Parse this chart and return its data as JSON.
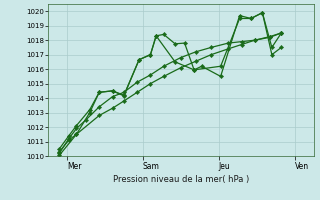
{
  "background_color": "#cce8e8",
  "grid_color": "#aacccc",
  "line_color": "#1a6b1a",
  "xlabel": "Pression niveau de la mer( hPa )",
  "ylim": [
    1010,
    1020.5
  ],
  "yticks": [
    1010,
    1011,
    1012,
    1013,
    1014,
    1015,
    1016,
    1017,
    1018,
    1019,
    1020
  ],
  "xlim": [
    0,
    7.0
  ],
  "day_ticks": [
    0.5,
    2.5,
    4.5,
    6.5
  ],
  "day_labels": [
    "Mer",
    "Sam",
    "Jeu",
    "Ven"
  ],
  "series1_x": [
    0.3,
    0.55,
    0.75,
    1.1,
    1.35,
    1.7,
    2.0,
    2.4,
    2.7,
    2.85,
    3.05,
    3.35,
    3.6,
    3.85,
    4.05,
    4.55,
    5.05,
    5.35,
    5.65,
    5.9,
    6.15
  ],
  "series1_y": [
    1010.3,
    1011.1,
    1011.5,
    1013.0,
    1014.4,
    1014.5,
    1014.15,
    1016.65,
    1017.0,
    1018.3,
    1018.4,
    1017.75,
    1017.8,
    1015.95,
    1016.2,
    1015.5,
    1019.7,
    1019.5,
    1019.9,
    1017.0,
    1017.5
  ],
  "series2_x": [
    0.3,
    0.55,
    0.75,
    1.1,
    1.35,
    1.7,
    2.0,
    2.4,
    2.7,
    2.85,
    3.35,
    3.85,
    4.55,
    5.05,
    5.35,
    5.65,
    5.9,
    6.15
  ],
  "series2_y": [
    1010.5,
    1011.4,
    1012.1,
    1013.2,
    1014.4,
    1014.5,
    1014.2,
    1016.65,
    1017.0,
    1018.3,
    1016.5,
    1015.95,
    1016.2,
    1019.5,
    1019.5,
    1019.9,
    1017.5,
    1018.5
  ],
  "series3_x": [
    0.3,
    0.55,
    0.75,
    1.0,
    1.35,
    1.7,
    2.0,
    2.35,
    2.7,
    3.05,
    3.5,
    3.9,
    4.3,
    4.75,
    5.1,
    5.45,
    5.85,
    6.15
  ],
  "series3_y": [
    1010.2,
    1011.2,
    1011.9,
    1012.5,
    1013.4,
    1014.1,
    1014.4,
    1015.1,
    1015.6,
    1016.2,
    1016.8,
    1017.2,
    1017.5,
    1017.8,
    1017.9,
    1018.0,
    1018.2,
    1018.5
  ],
  "series4_x": [
    0.3,
    0.75,
    1.35,
    1.7,
    2.0,
    2.35,
    2.7,
    3.05,
    3.5,
    3.9,
    4.3,
    4.75,
    5.1,
    5.45,
    5.85,
    6.15
  ],
  "series4_y": [
    1010.05,
    1011.5,
    1012.8,
    1013.3,
    1013.8,
    1014.4,
    1015.0,
    1015.5,
    1016.1,
    1016.55,
    1017.0,
    1017.4,
    1017.7,
    1018.0,
    1018.25,
    1018.5
  ]
}
